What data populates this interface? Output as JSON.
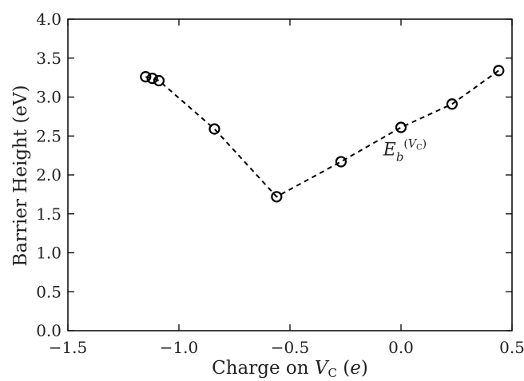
{
  "chart_data": {
    "type": "line",
    "xlabel": "Charge on V_C (e)",
    "ylabel": "Barrier Height (eV)",
    "xlim": [
      -1.5,
      0.5
    ],
    "ylim": [
      0.0,
      4.0
    ],
    "xticks": [
      "−1.5",
      "−1.0",
      "−0.5",
      "0.0",
      "0.5"
    ],
    "yticks": [
      "0.0",
      "0.5",
      "1.0",
      "1.5",
      "2.0",
      "2.5",
      "3.0",
      "3.5",
      "4.0"
    ],
    "grid": false,
    "line_style": "dashed",
    "marker": "open-circle",
    "series": [
      {
        "x": [
          -1.15,
          -1.12,
          -1.09,
          -0.84,
          -0.56,
          -0.27,
          0.0,
          0.23,
          0.44
        ],
        "y": [
          3.26,
          3.24,
          3.21,
          2.59,
          1.72,
          2.17,
          2.61,
          2.91,
          3.34
        ]
      }
    ],
    "annotations": [
      {
        "text": "E_b^(V_C)",
        "x": -0.08,
        "y": 2.25
      }
    ]
  }
}
